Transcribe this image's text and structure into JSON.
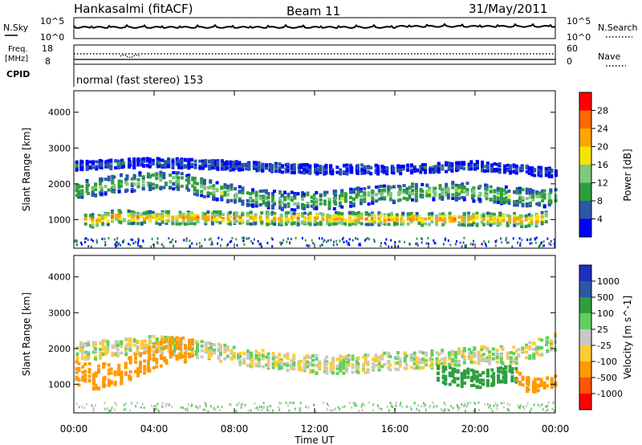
{
  "header": {
    "station": "Hankasalmi (fitACF)",
    "beam": "Beam 11",
    "date": "31/May/2011"
  },
  "summary_panels": {
    "nsky": {
      "label": "N.Sky",
      "ticks": [
        "10^5",
        "10^0"
      ],
      "right_ticks": [
        "10^5",
        "10^0"
      ],
      "right_label": "N.Search"
    },
    "freq": {
      "label_top": "Freq.",
      "label_unit": "[MHz]",
      "ticks": [
        "18",
        "8"
      ],
      "right_ticks": [
        "60",
        "0"
      ],
      "right_label": "Nave"
    },
    "cpid": {
      "label": "CPID",
      "value": "normal (fast stereo) 153"
    }
  },
  "colors": {
    "power": [
      "#0000ff",
      "#2a57a8",
      "#2e9e3f",
      "#7fc97f",
      "#f2e600",
      "#ffa500",
      "#ff6a00",
      "#ff0000"
    ],
    "velocity": [
      "#1f2fbf",
      "#2a57a8",
      "#2e9e3f",
      "#5fd05f",
      "#c8c8c8",
      "#ffcc33",
      "#ff9900",
      "#ff5500",
      "#ff0000"
    ]
  },
  "chart_data": [
    {
      "type": "heatmap",
      "title": "",
      "xlabel": "Time UT",
      "ylabel": "Slant Range [km]",
      "x_ticks": [
        "00:00",
        "04:00",
        "08:00",
        "12:00",
        "16:00",
        "20:00",
        "00:00"
      ],
      "y_ticks": [
        "4000",
        "3000",
        "2000",
        "1000"
      ],
      "ylim": [
        200,
        4600
      ],
      "colorbar": {
        "label": "Power [dB]",
        "ticks": [
          "28",
          "24",
          "20",
          "16",
          "12",
          "8",
          "4"
        ],
        "range": [
          0,
          32
        ]
      },
      "bands": [
        {
          "x": [
            0,
            1.5,
            3,
            5,
            7,
            9,
            11,
            13,
            15,
            17,
            19,
            21,
            22.5,
            24
          ],
          "y": [
            1800,
            1950,
            2050,
            2100,
            1800,
            1600,
            1500,
            1550,
            1700,
            1750,
            1800,
            1700,
            1600,
            1600
          ],
          "width": 500,
          "level": 14
        },
        {
          "x": [
            0.5,
            1,
            1.5,
            2,
            3,
            22,
            22.5,
            23,
            23.5
          ],
          "y": [
            1000,
            950,
            1000,
            1100,
            1050,
            1000,
            950,
            1000,
            1050
          ],
          "width": 350,
          "level": 24
        },
        {
          "x": [
            0,
            4,
            8,
            12,
            16,
            20,
            24
          ],
          "y": [
            2500,
            2600,
            2500,
            2400,
            2400,
            2500,
            2300
          ],
          "width": 250,
          "level": 6
        }
      ]
    },
    {
      "type": "heatmap",
      "title": "",
      "xlabel": "Time UT",
      "ylabel": "Slant Range [km]",
      "x_ticks": [
        "00:00",
        "04:00",
        "08:00",
        "12:00",
        "16:00",
        "20:00",
        "00:00"
      ],
      "y_ticks": [
        "4000",
        "3000",
        "2000",
        "1000"
      ],
      "ylim": [
        200,
        4600
      ],
      "colorbar": {
        "label": "Velocity [m s^-1]",
        "ticks": [
          "1000",
          "500",
          "100",
          "25",
          "-25",
          "-100",
          "-500",
          "-1000"
        ],
        "range": [
          -1200,
          1200
        ]
      },
      "bands": [
        {
          "x": [
            0,
            2,
            4,
            6,
            8,
            10,
            12,
            14,
            16,
            18,
            20,
            22,
            24
          ],
          "y": [
            1900,
            2000,
            2100,
            2000,
            1800,
            1650,
            1550,
            1550,
            1650,
            1700,
            1800,
            1800,
            2200
          ],
          "width": 500,
          "level": 0
        },
        {
          "x": [
            0,
            1,
            2,
            3,
            4,
            5,
            6
          ],
          "y": [
            1300,
            1200,
            1300,
            1500,
            1800,
            2000,
            1900
          ],
          "width": 700,
          "level": -300
        },
        {
          "x": [
            18,
            19,
            20,
            21,
            22
          ],
          "y": [
            1300,
            1200,
            1150,
            1200,
            1300
          ],
          "width": 500,
          "level": 200
        },
        {
          "x": [
            22,
            22.5,
            23,
            23.5,
            24
          ],
          "y": [
            1200,
            1000,
            950,
            1000,
            1100
          ],
          "width": 400,
          "level": -300
        }
      ]
    }
  ]
}
